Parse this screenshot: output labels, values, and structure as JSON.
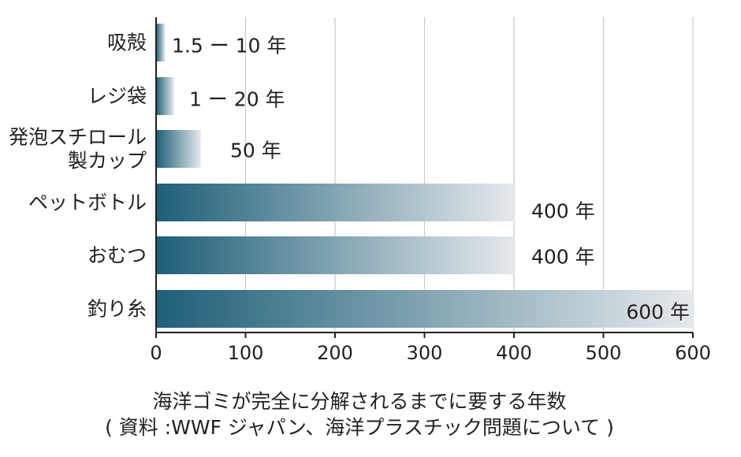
{
  "chart_data": {
    "type": "bar",
    "orientation": "horizontal",
    "categories": [
      "吸殻",
      "レジ袋",
      "発泡スチロール製カップ",
      "ペットボトル",
      "おむつ",
      "釣り糸"
    ],
    "category_lines": [
      [
        "吸殻"
      ],
      [
        "レジ袋"
      ],
      [
        "発泡スチロール",
        "製カップ"
      ],
      [
        "ペットボトル"
      ],
      [
        "おむつ"
      ],
      [
        "釣り糸"
      ]
    ],
    "values": [
      10,
      20,
      50,
      400,
      400,
      600
    ],
    "value_labels": [
      "1.5 ー 10 年",
      "1 ー 20 年",
      "50 年",
      "400 年",
      "400 年",
      "600 年"
    ],
    "xlim": [
      0,
      600
    ],
    "xticks": [
      0,
      100,
      200,
      300,
      400,
      500,
      600
    ],
    "grid": true,
    "bar_gradient": [
      "#1e5f78",
      "#e6e9ec"
    ]
  },
  "caption": {
    "line1": "海洋ゴミが完全に分解されるまでに要する年数",
    "line2": "( 資料 :WWF ジャパン、海洋プラスチック問題について )"
  }
}
